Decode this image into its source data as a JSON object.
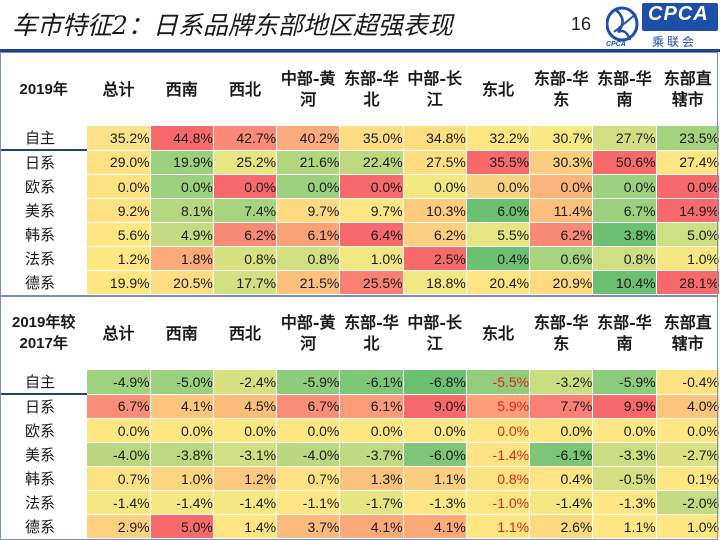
{
  "header": {
    "title": "车市特征2：日系品牌东部地区超强表现",
    "page_number": "16",
    "logo": {
      "text": "CPCA",
      "cn": "乘联会",
      "sub": "CPCA"
    }
  },
  "columns": [
    "总计",
    "西南",
    "西北",
    "中部-黄河",
    "东部-华北",
    "中部-长江",
    "东北",
    "东部-华东",
    "东部-华南",
    "东部直辖市"
  ],
  "table1": {
    "corner": "2019年",
    "rows": [
      {
        "label": "自主",
        "values": [
          "35.2%",
          "44.8%",
          "42.7%",
          "40.2%",
          "35.0%",
          "34.8%",
          "32.2%",
          "30.7%",
          "27.7%",
          "23.5%"
        ],
        "colors": [
          "#fce38a",
          "#f8696b",
          "#f98a77",
          "#fbab7e",
          "#fedc81",
          "#fedd81",
          "#fee783",
          "#f8e984",
          "#d1df81",
          "#a3d37f"
        ]
      },
      {
        "label": "日系",
        "values": [
          "29.0%",
          "19.9%",
          "25.2%",
          "21.6%",
          "22.4%",
          "27.5%",
          "35.5%",
          "30.3%",
          "50.6%",
          "27.4%"
        ],
        "colors": [
          "#fee282",
          "#9bd17e",
          "#e6e483",
          "#b1d67f",
          "#bdd980",
          "#fedd81",
          "#f8696b",
          "#fdcd7f",
          "#f8696b",
          "#fee483"
        ]
      },
      {
        "label": "欧系",
        "values": [
          "0.0%",
          "0.0%",
          "0.0%",
          "0.0%",
          "0.0%",
          "0.0%",
          "0.0%",
          "0.0%",
          "0.0%",
          "0.0%"
        ],
        "colors": [
          "#fde281",
          "#9bd17e",
          "#f8696b",
          "#9bd17e",
          "#f8696b",
          "#f4e883",
          "#f8d37f",
          "#fbb47c",
          "#9bd17e",
          "#f8696b"
        ]
      },
      {
        "label": "美系",
        "values": [
          "9.2%",
          "8.1%",
          "7.4%",
          "9.7%",
          "9.7%",
          "10.3%",
          "6.0%",
          "11.4%",
          "6.7%",
          "14.9%"
        ],
        "colors": [
          "#fee182",
          "#b5d780",
          "#a9d47f",
          "#fdd981",
          "#fee683",
          "#fccb7e",
          "#6cc071",
          "#fcbf7b",
          "#9bd17e",
          "#f8696b"
        ]
      },
      {
        "label": "韩系",
        "values": [
          "5.6%",
          "4.9%",
          "6.2%",
          "6.1%",
          "6.4%",
          "6.2%",
          "5.5%",
          "6.2%",
          "3.8%",
          "5.0%"
        ],
        "colors": [
          "#fee783",
          "#c5db81",
          "#f98a77",
          "#f9a275",
          "#f8696b",
          "#fdd081",
          "#e7e483",
          "#f98a77",
          "#6cc071",
          "#cedf81"
        ]
      },
      {
        "label": "法系",
        "values": [
          "1.2%",
          "1.8%",
          "0.8%",
          "0.8%",
          "1.0%",
          "2.5%",
          "0.4%",
          "0.6%",
          "0.8%",
          "1.0%"
        ],
        "colors": [
          "#fee783",
          "#fbaa78",
          "#d8e182",
          "#d0df81",
          "#f1e783",
          "#f8696b",
          "#6cc071",
          "#a9d47f",
          "#cedf81",
          "#f5e883"
        ]
      },
      {
        "label": "德系",
        "values": [
          "19.9%",
          "20.5%",
          "17.7%",
          "21.5%",
          "25.5%",
          "18.8%",
          "20.4%",
          "20.9%",
          "10.4%",
          "28.1%"
        ],
        "colors": [
          "#fee783",
          "#fedc81",
          "#d3e081",
          "#fcc07c",
          "#f98073",
          "#f1e783",
          "#fee583",
          "#fed980",
          "#6cc071",
          "#f8696b"
        ]
      }
    ]
  },
  "table2": {
    "corner": "2019年较2017年",
    "rows": [
      {
        "label": "自主",
        "values": [
          "-4.9%",
          "-5.0%",
          "-2.4%",
          "-5.9%",
          "-6.1%",
          "-6.8%",
          "-5.5%",
          "-3.2%",
          "-5.9%",
          "-0.4%"
        ],
        "colors": [
          "#9ed27e",
          "#9bd17e",
          "#d8e182",
          "#8dcc7b",
          "#7cc676",
          "#6cc071",
          "#91cd7c",
          "#c9dd81",
          "#8dcc7b",
          "#fde282"
        ],
        "red": [
          6
        ]
      },
      {
        "label": "日系",
        "values": [
          "6.7%",
          "4.1%",
          "4.5%",
          "6.7%",
          "6.1%",
          "9.0%",
          "5.9%",
          "7.7%",
          "9.9%",
          "4.0%"
        ],
        "colors": [
          "#f98e78",
          "#fcc47d",
          "#fcbd7c",
          "#f98e78",
          "#fa9b79",
          "#f8696b",
          "#fa9f79",
          "#f97e73",
          "#f8696b",
          "#fcc57e"
        ],
        "red": [
          6
        ]
      },
      {
        "label": "欧系",
        "values": [
          "0.0%",
          "0.0%",
          "0.0%",
          "0.0%",
          "0.0%",
          "0.0%",
          "0.0%",
          "0.0%",
          "0.0%",
          "0.0%"
        ],
        "colors": [
          "#fee783",
          "#fee783",
          "#fee783",
          "#fee783",
          "#fee783",
          "#fee783",
          "#fee783",
          "#fee783",
          "#fee783",
          "#fee783"
        ],
        "red": [
          6
        ]
      },
      {
        "label": "美系",
        "values": [
          "-4.0%",
          "-3.8%",
          "-3.1%",
          "-4.0%",
          "-3.7%",
          "-6.0%",
          "-1.4%",
          "-6.1%",
          "-3.3%",
          "-2.7%"
        ],
        "colors": [
          "#b9d880",
          "#bdd980",
          "#cfdf81",
          "#b9d880",
          "#c0da80",
          "#7fc777",
          "#fde383",
          "#7cc676",
          "#cadd81",
          "#dae182"
        ],
        "red": [
          6
        ]
      },
      {
        "label": "韩系",
        "values": [
          "0.7%",
          "1.0%",
          "1.2%",
          "0.7%",
          "1.3%",
          "1.1%",
          "0.8%",
          "0.4%",
          "-0.5%",
          "0.1%"
        ],
        "colors": [
          "#fde182",
          "#fcd580",
          "#fcca7e",
          "#fde182",
          "#fbc27d",
          "#fcce7f",
          "#fde281",
          "#fee483",
          "#d6e082",
          "#fee683"
        ],
        "red": [
          6
        ]
      },
      {
        "label": "法系",
        "values": [
          "-1.4%",
          "-1.4%",
          "-1.4%",
          "-1.1%",
          "-1.7%",
          "-1.3%",
          "-1.0%",
          "-1.4%",
          "-1.3%",
          "-2.0%"
        ],
        "colors": [
          "#f5e883",
          "#f5e883",
          "#f5e883",
          "#fde683",
          "#e5e483",
          "#fde683",
          "#fee783",
          "#f5e883",
          "#fde683",
          "#c5db81"
        ],
        "red": [
          6
        ]
      },
      {
        "label": "德系",
        "values": [
          "2.9%",
          "5.0%",
          "1.4%",
          "3.7%",
          "4.1%",
          "4.1%",
          "1.1%",
          "2.6%",
          "1.1%",
          "1.0%"
        ],
        "colors": [
          "#fdd180",
          "#f8696b",
          "#fee483",
          "#fcbb7c",
          "#fba977",
          "#fba977",
          "#fee783",
          "#fdd981",
          "#fee783",
          "#fee783"
        ],
        "red": [
          6
        ]
      }
    ]
  }
}
